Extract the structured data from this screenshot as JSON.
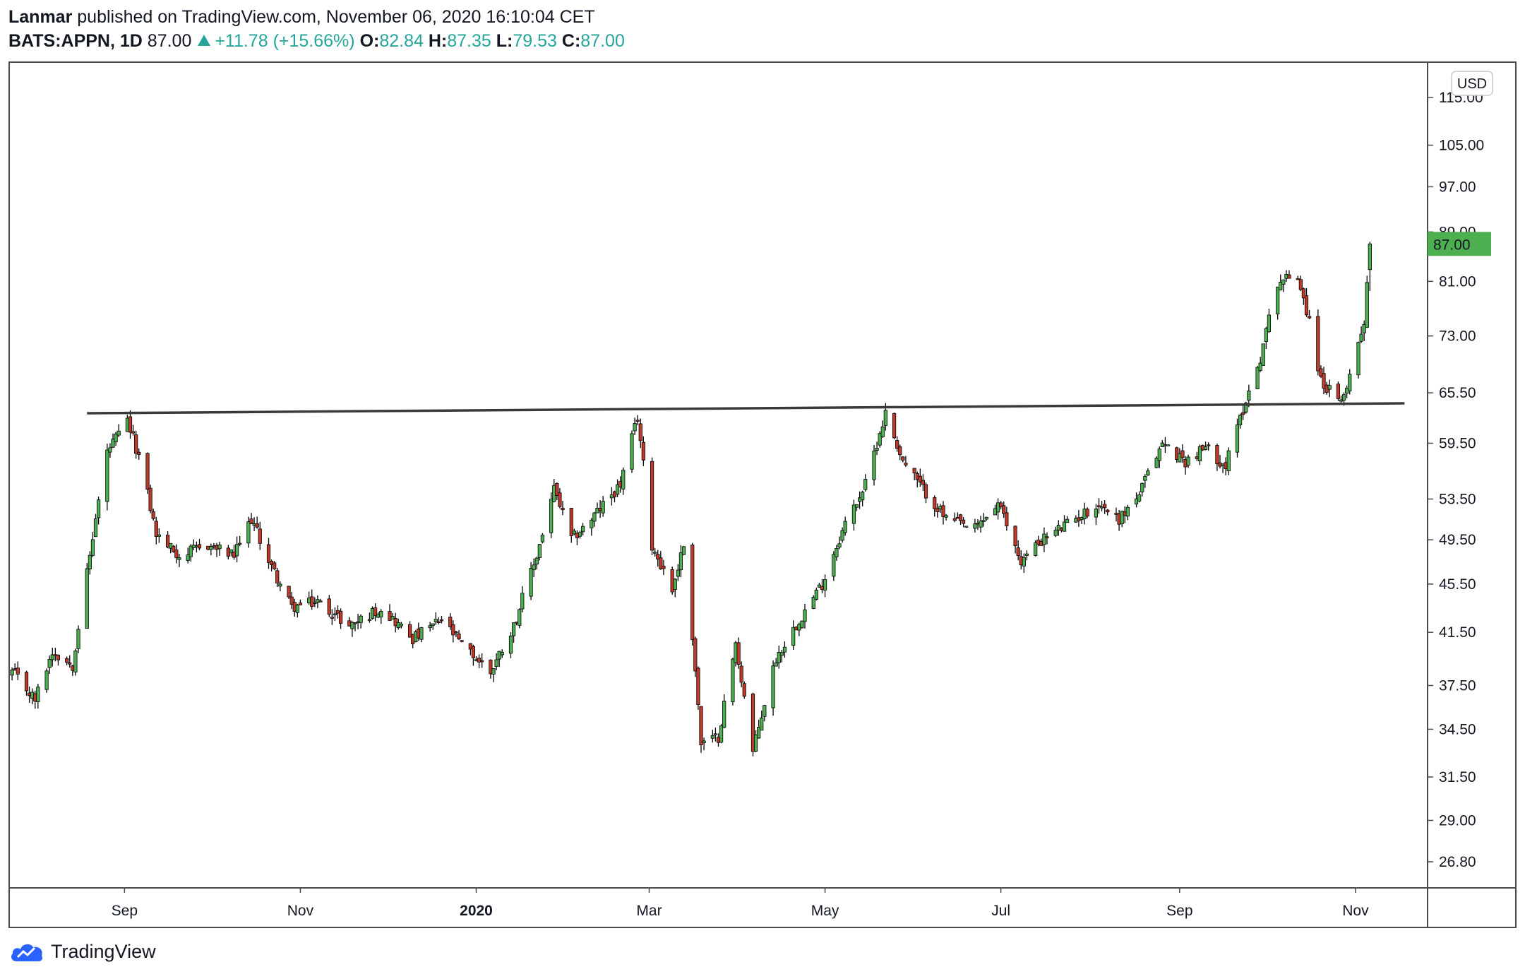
{
  "header": {
    "author": "Lanmar",
    "published_text": "published on TradingView.com, November 06, 2020 16:10:04 CET",
    "symbol": "BATS:APPN, 1D",
    "last": "87.00",
    "change": "+11.78 (+15.66%)",
    "o_label": "O:",
    "o_value": "82.84",
    "h_label": "H:",
    "h_value": "87.35",
    "l_label": "L:",
    "l_value": "79.53",
    "c_label": "C:",
    "c_value": "87.00"
  },
  "currency": "USD",
  "last_price_label": "87.00",
  "footer": {
    "brand": "TradingView"
  },
  "colors": {
    "up": "#26a69a",
    "candle_up": "#4caf50",
    "candle_down": "#c0392b",
    "wick": "#000000",
    "trendline": "#3a3a3a",
    "price_tag": "#4caf50"
  },
  "chart_data": {
    "type": "candlestick",
    "symbol": "BATS:APPN",
    "interval": "1D",
    "y_scale": "log",
    "ylim": [
      25.5,
      123
    ],
    "y_ticks": [
      "115.00",
      "105.00",
      "97.00",
      "89.00",
      "81.00",
      "73.00",
      "65.50",
      "59.50",
      "53.50",
      "49.50",
      "45.50",
      "41.50",
      "37.50",
      "34.50",
      "31.50",
      "29.00",
      "26.80"
    ],
    "x_ticks": [
      "Sep",
      "Nov",
      "2020",
      "Mar",
      "May",
      "Jul",
      "Sep",
      "Nov"
    ],
    "xlim": [
      "2019-07-23",
      "2020-11-26"
    ],
    "trendline": {
      "start": [
        "2019-08-19",
        63.0
      ],
      "end": [
        "2020-11-18",
        64.2
      ]
    },
    "anchors": [
      [
        "2019-07-24",
        38.5
      ],
      [
        "2019-08-01",
        36.5
      ],
      [
        "2019-08-07",
        40.0
      ],
      [
        "2019-08-14",
        39.0
      ],
      [
        "2019-08-20",
        48.0
      ],
      [
        "2019-08-26",
        58.5
      ],
      [
        "2019-09-02",
        62.0
      ],
      [
        "2019-09-06",
        58.0
      ],
      [
        "2019-09-12",
        50.0
      ],
      [
        "2019-09-20",
        48.0
      ],
      [
        "2019-09-30",
        49.0
      ],
      [
        "2019-10-09",
        48.0
      ],
      [
        "2019-10-15",
        51.5
      ],
      [
        "2019-10-22",
        47.0
      ],
      [
        "2019-10-29",
        43.5
      ],
      [
        "2019-11-07",
        44.0
      ],
      [
        "2019-11-18",
        42.0
      ],
      [
        "2019-11-29",
        43.5
      ],
      [
        "2019-12-10",
        41.0
      ],
      [
        "2019-12-20",
        42.5
      ],
      [
        "2019-12-27",
        40.5
      ],
      [
        "2020-01-06",
        38.5
      ],
      [
        "2020-01-14",
        42.0
      ],
      [
        "2020-01-22",
        48.0
      ],
      [
        "2020-01-28",
        54.5
      ],
      [
        "2020-02-03",
        49.5
      ],
      [
        "2020-02-10",
        51.5
      ],
      [
        "2020-02-20",
        55.0
      ],
      [
        "2020-02-26",
        62.5
      ],
      [
        "2020-03-02",
        49.0
      ],
      [
        "2020-03-09",
        45.0
      ],
      [
        "2020-03-13",
        49.0
      ],
      [
        "2020-03-19",
        33.5
      ],
      [
        "2020-03-25",
        34.0
      ],
      [
        "2020-03-31",
        40.5
      ],
      [
        "2020-04-06",
        33.0
      ],
      [
        "2020-04-14",
        39.5
      ],
      [
        "2020-04-22",
        42.5
      ],
      [
        "2020-04-30",
        45.5
      ],
      [
        "2020-05-08",
        51.0
      ],
      [
        "2020-05-15",
        55.0
      ],
      [
        "2020-05-22",
        63.0
      ],
      [
        "2020-05-28",
        57.5
      ],
      [
        "2020-06-04",
        54.5
      ],
      [
        "2020-06-12",
        51.5
      ],
      [
        "2020-06-22",
        50.5
      ],
      [
        "2020-06-30",
        53.0
      ],
      [
        "2020-07-08",
        47.5
      ],
      [
        "2020-07-15",
        49.5
      ],
      [
        "2020-07-24",
        51.0
      ],
      [
        "2020-08-04",
        53.0
      ],
      [
        "2020-08-11",
        51.5
      ],
      [
        "2020-08-18",
        54.0
      ],
      [
        "2020-08-26",
        59.5
      ],
      [
        "2020-09-03",
        57.5
      ],
      [
        "2020-09-10",
        59.0
      ],
      [
        "2020-09-17",
        57.0
      ],
      [
        "2020-09-23",
        63.5
      ],
      [
        "2020-09-29",
        70.0
      ],
      [
        "2020-10-05",
        81.0
      ],
      [
        "2020-10-12",
        82.0
      ],
      [
        "2020-10-16",
        75.0
      ],
      [
        "2020-10-20",
        67.0
      ],
      [
        "2020-10-27",
        64.0
      ],
      [
        "2020-11-02",
        72.0
      ],
      [
        "2020-11-04",
        75.2
      ],
      [
        "2020-11-06",
        87.0
      ]
    ],
    "last_candle": {
      "date": "2020-11-06",
      "open": 82.84,
      "high": 87.35,
      "low": 79.53,
      "close": 87.0
    }
  }
}
